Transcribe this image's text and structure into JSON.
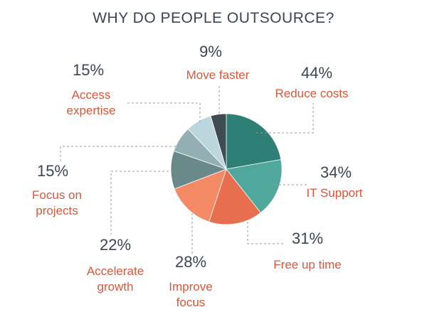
{
  "chart_data": {
    "type": "pie",
    "title": "WHY DO PEOPLE OUTSOURCE?",
    "slices": [
      {
        "label_lines": [
          "Reduce costs"
        ],
        "value": "44%",
        "share": 44,
        "color": "#2e7f75"
      },
      {
        "label_lines": [
          "IT Support"
        ],
        "value": "34%",
        "share": 34,
        "color": "#4fa89b"
      },
      {
        "label_lines": [
          "Free up time"
        ],
        "value": "31%",
        "share": 31,
        "color": "#e76f4f"
      },
      {
        "label_lines": [
          "Improve",
          "focus"
        ],
        "value": "28%",
        "share": 28,
        "color": "#f48966"
      },
      {
        "label_lines": [
          "Accelerate",
          "growth"
        ],
        "value": "22%",
        "share": 22,
        "color": "#6a8a8a"
      },
      {
        "label_lines": [
          "Focus on",
          "projects"
        ],
        "value": "15%",
        "share": 15,
        "color": "#93afb4"
      },
      {
        "label_lines": [
          "Access",
          "expertise"
        ],
        "value": "15%",
        "share": 15,
        "color": "#bcd6dd"
      },
      {
        "label_lines": [
          "Move faster"
        ],
        "value": "9%",
        "share": 9,
        "color": "#3e4b50"
      }
    ]
  }
}
